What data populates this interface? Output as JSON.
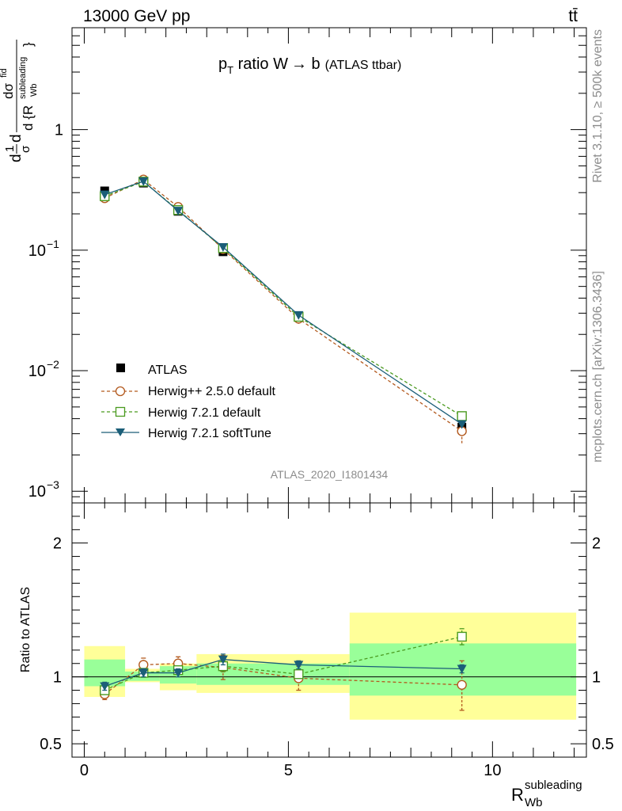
{
  "header": {
    "energy_label": "13000 GeV pp",
    "process_label": "tt̄"
  },
  "side_labels": {
    "rivet": "Rivet 3.1.10, ≥ 500k events",
    "mcplots": "mcplots.cern.ch [arXiv:1306.3436]"
  },
  "chart_data": [
    {
      "type": "line",
      "panel": "main",
      "title_parts": {
        "p": "p",
        "sub_T": "T",
        "rest": " ratio W",
        "arrow": "→",
        "b": " b",
        "small": "(ATLAS ttbar)"
      },
      "watermark": "ATLAS_2020_I1801434",
      "ylabel": "1/σ dσ/d{R_Wb^subleading}",
      "ylabel_parts": {
        "frac_top": "dσ",
        "frac_top_sup": "fid",
        "frac_bot_d": "d {R",
        "frac_bot_sup": "subleading",
        "frac_bot_sub": "Wb",
        "frac_close": "}",
        "d1": "d",
        "one": "1",
        "sigma": "σ",
        "d2": "d"
      },
      "yscale": "log",
      "ylim": [
        0.0008,
        7.0
      ],
      "xlim": [
        -0.3,
        12.3
      ],
      "y_ticks": [
        {
          "value": 1,
          "label": "1"
        },
        {
          "value": 0.1,
          "label_base": "10",
          "label_exp": "−1"
        },
        {
          "value": 0.01,
          "label_base": "10",
          "label_exp": "−2"
        },
        {
          "value": 0.001,
          "label_base": "10",
          "label_exp": "−3"
        }
      ],
      "x": [
        0.5,
        1.45,
        2.3,
        3.4,
        5.25,
        9.25
      ],
      "series": [
        {
          "name": "ATLAS",
          "marker": "square-filled",
          "color": "#000000",
          "dash": "none",
          "values": [
            0.31,
            0.36,
            0.21,
            0.097,
            0.028,
            0.0034
          ]
        },
        {
          "name": "Herwig++ 2.5.0 default",
          "marker": "circle-open",
          "color": "#b35a1f",
          "dash": "4,3",
          "values": [
            0.27,
            0.385,
            0.228,
            0.102,
            0.027,
            0.00315
          ],
          "err_low": [
            0.255,
            0.37,
            0.215,
            0.093,
            0.0245,
            0.0025
          ],
          "err_high": [
            0.285,
            0.4,
            0.24,
            0.11,
            0.0295,
            0.0038
          ]
        },
        {
          "name": "Herwig 7.2.1 default",
          "marker": "square-open",
          "color": "#4a9a1f",
          "dash": "4,3",
          "values": [
            0.28,
            0.37,
            0.215,
            0.104,
            0.028,
            0.0042
          ]
        },
        {
          "name": "Herwig 7.2.1 softTune",
          "marker": "triangle-down-filled",
          "color": "#1b5e78",
          "dash": "none",
          "values": [
            0.289,
            0.372,
            0.212,
            0.106,
            0.0289,
            0.0036
          ]
        }
      ]
    },
    {
      "type": "line",
      "panel": "ratio",
      "ylabel": "Ratio to ATLAS",
      "xlabel": "R_Wb^subleading",
      "xlabel_parts": {
        "R": "R",
        "sub": "Wb",
        "sup": "subleading"
      },
      "ylim": [
        0.4,
        2.3
      ],
      "xlim": [
        -0.3,
        12.3
      ],
      "y_ticks": [
        {
          "value": 2,
          "label": "2"
        },
        {
          "value": 1,
          "label": "1"
        },
        {
          "value": 0.5,
          "label": "0.5"
        }
      ],
      "x_ticks": [
        {
          "value": 0,
          "label": "0"
        },
        {
          "value": 5,
          "label": "5"
        },
        {
          "value": 10,
          "label": "10"
        }
      ],
      "bands": [
        {
          "x0": 0.0,
          "x1": 1.0,
          "inner": [
            0.93,
            1.13
          ],
          "outer": [
            0.85,
            1.23
          ]
        },
        {
          "x0": 1.0,
          "x1": 1.85,
          "inner": [
            0.97,
            1.04
          ],
          "outer": [
            0.96,
            1.06
          ]
        },
        {
          "x0": 1.85,
          "x1": 2.75,
          "inner": [
            0.95,
            1.08
          ],
          "outer": [
            0.9,
            1.1
          ]
        },
        {
          "x0": 2.75,
          "x1": 6.5,
          "inner": [
            0.94,
            1.1
          ],
          "outer": [
            0.88,
            1.17
          ]
        },
        {
          "x0": 6.5,
          "x1": 12.05,
          "inner": [
            0.86,
            1.25
          ],
          "outer": [
            0.68,
            1.48
          ]
        }
      ],
      "x": [
        0.5,
        1.45,
        2.3,
        3.4,
        5.25,
        9.25
      ],
      "series": [
        {
          "name": "Herwig++ 2.5.0 default",
          "marker": "circle-open",
          "color": "#b35a1f",
          "dash": "4,3",
          "values": [
            0.87,
            1.09,
            1.1,
            1.07,
            0.99,
            0.94
          ],
          "err_low": [
            0.83,
            1.05,
            1.05,
            0.98,
            0.9,
            0.75
          ],
          "err_high": [
            0.92,
            1.14,
            1.15,
            1.16,
            1.08,
            1.12
          ]
        },
        {
          "name": "Herwig 7.2.1 default",
          "marker": "square-open",
          "color": "#4a9a1f",
          "dash": "4,3",
          "values": [
            0.9,
            1.03,
            1.05,
            1.08,
            1.02,
            1.3
          ],
          "err_low": [
            0.87,
            1.0,
            1.02,
            1.04,
            0.99,
            1.24
          ],
          "err_high": [
            0.93,
            1.06,
            1.08,
            1.12,
            1.05,
            1.36
          ]
        },
        {
          "name": "Herwig 7.2.1 softTune",
          "marker": "triangle-down-filled",
          "color": "#1b5e78",
          "dash": "none",
          "values": [
            0.93,
            1.03,
            1.03,
            1.13,
            1.09,
            1.06
          ],
          "err_low": [
            0.9,
            1.0,
            1.0,
            1.09,
            1.06,
            1.03
          ],
          "err_high": [
            0.96,
            1.06,
            1.06,
            1.17,
            1.12,
            1.09
          ]
        }
      ]
    }
  ]
}
